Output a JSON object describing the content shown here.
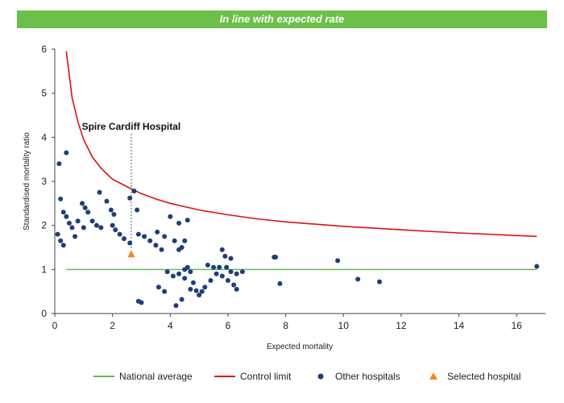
{
  "banner": {
    "text": "In line with expected rate",
    "color": "#6cc04a"
  },
  "chart_data": {
    "type": "scatter",
    "xlabel": "Expected mortality",
    "ylabel": "Standardised mortality ratio",
    "xlim": [
      0,
      17
    ],
    "ylim": [
      0,
      6
    ],
    "x_ticks": [
      0,
      2,
      4,
      6,
      8,
      10,
      12,
      14,
      16
    ],
    "y_ticks": [
      0,
      1,
      2,
      3,
      4,
      5,
      6
    ],
    "grid": false,
    "legend_position": "bottom",
    "national_average": {
      "name": "National average",
      "color": "#66bb55",
      "y": 1,
      "x_range": [
        0.4,
        16.7
      ]
    },
    "control_limit": {
      "name": "Control limit",
      "color": "#dd1111",
      "points": [
        [
          0.4,
          5.95
        ],
        [
          0.6,
          4.9
        ],
        [
          0.8,
          4.35
        ],
        [
          1.0,
          3.95
        ],
        [
          1.3,
          3.55
        ],
        [
          1.6,
          3.3
        ],
        [
          2.0,
          3.05
        ],
        [
          2.5,
          2.88
        ],
        [
          3.0,
          2.72
        ],
        [
          3.5,
          2.6
        ],
        [
          4.0,
          2.5
        ],
        [
          5.0,
          2.35
        ],
        [
          6.0,
          2.24
        ],
        [
          7.0,
          2.15
        ],
        [
          8.0,
          2.08
        ],
        [
          10.0,
          1.98
        ],
        [
          12.0,
          1.9
        ],
        [
          14.0,
          1.83
        ],
        [
          16.7,
          1.75
        ]
      ]
    },
    "selected_hospital": {
      "name": "Selected hospital",
      "label": "Spire Cardiff Hospital",
      "color": "#f08a1d",
      "x": 2.65,
      "y": 1.35
    },
    "other_hospitals": {
      "name": "Other hospitals",
      "color": "#1f3d7a",
      "points": [
        [
          0.15,
          3.4
        ],
        [
          0.4,
          3.65
        ],
        [
          0.2,
          2.6
        ],
        [
          0.3,
          2.3
        ],
        [
          0.4,
          2.2
        ],
        [
          0.5,
          2.05
        ],
        [
          0.6,
          1.95
        ],
        [
          0.8,
          2.1
        ],
        [
          0.3,
          1.55
        ],
        [
          0.1,
          1.8
        ],
        [
          0.2,
          1.65
        ],
        [
          0.7,
          1.75
        ],
        [
          0.95,
          2.5
        ],
        [
          1.05,
          2.4
        ],
        [
          1.15,
          2.3
        ],
        [
          1.3,
          2.1
        ],
        [
          1.45,
          2.0
        ],
        [
          1.6,
          1.95
        ],
        [
          1.0,
          1.95
        ],
        [
          1.55,
          2.75
        ],
        [
          1.8,
          2.55
        ],
        [
          1.95,
          2.35
        ],
        [
          2.05,
          2.25
        ],
        [
          2.0,
          2.0
        ],
        [
          2.1,
          1.9
        ],
        [
          2.25,
          1.8
        ],
        [
          2.4,
          1.7
        ],
        [
          2.6,
          1.6
        ],
        [
          2.75,
          2.78
        ],
        [
          2.6,
          2.62
        ],
        [
          2.85,
          2.35
        ],
        [
          2.9,
          1.8
        ],
        [
          3.1,
          1.75
        ],
        [
          3.3,
          1.65
        ],
        [
          3.5,
          1.55
        ],
        [
          3.7,
          1.45
        ],
        [
          3.55,
          1.85
        ],
        [
          3.8,
          1.75
        ],
        [
          4.0,
          2.2
        ],
        [
          4.3,
          2.05
        ],
        [
          4.6,
          2.12
        ],
        [
          4.15,
          1.65
        ],
        [
          4.3,
          1.45
        ],
        [
          4.4,
          1.5
        ],
        [
          4.5,
          1.65
        ],
        [
          5.3,
          1.1
        ],
        [
          5.5,
          1.05
        ],
        [
          5.7,
          1.05
        ],
        [
          5.8,
          1.45
        ],
        [
          5.9,
          1.3
        ],
        [
          6.1,
          1.25
        ],
        [
          5.95,
          1.05
        ],
        [
          6.1,
          0.95
        ],
        [
          6.3,
          0.9
        ],
        [
          6.5,
          0.95
        ],
        [
          5.6,
          0.9
        ],
        [
          5.8,
          0.85
        ],
        [
          6.0,
          0.75
        ],
        [
          6.2,
          0.65
        ],
        [
          6.3,
          0.55
        ],
        [
          5.4,
          0.75
        ],
        [
          5.2,
          0.6
        ],
        [
          7.6,
          1.28
        ],
        [
          7.65,
          1.28
        ],
        [
          7.8,
          0.68
        ],
        [
          9.8,
          1.2
        ],
        [
          10.5,
          0.78
        ],
        [
          11.25,
          0.72
        ],
        [
          16.7,
          1.07
        ],
        [
          3.0,
          0.25
        ],
        [
          2.9,
          0.28
        ],
        [
          4.2,
          0.18
        ],
        [
          4.4,
          0.32
        ],
        [
          4.7,
          0.55
        ],
        [
          4.9,
          0.52
        ],
        [
          5.0,
          0.42
        ],
        [
          5.1,
          0.5
        ],
        [
          4.8,
          0.7
        ],
        [
          4.5,
          0.8
        ],
        [
          3.8,
          0.5
        ],
        [
          3.6,
          0.6
        ],
        [
          3.9,
          0.95
        ],
        [
          4.1,
          0.85
        ],
        [
          4.3,
          0.9
        ],
        [
          4.5,
          1.0
        ],
        [
          4.6,
          1.05
        ],
        [
          4.7,
          0.95
        ]
      ]
    },
    "series": [
      {
        "name": "National average"
      },
      {
        "name": "Control limit"
      },
      {
        "name": "Other hospitals"
      },
      {
        "name": "Selected hospital"
      }
    ]
  }
}
